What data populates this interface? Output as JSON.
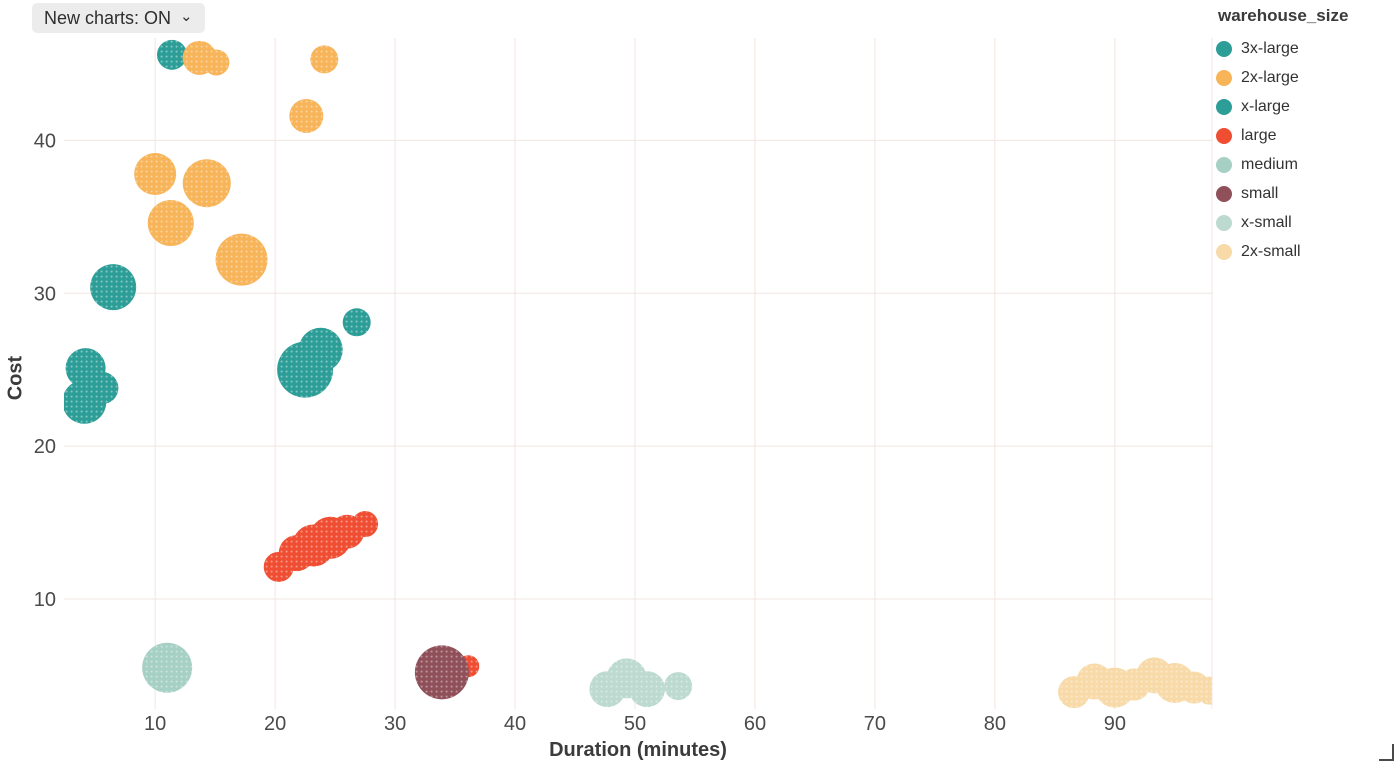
{
  "controls": {
    "new_charts_toggle": {
      "label": "New charts: ON",
      "chevron_down_icon": "⌄"
    }
  },
  "legend": {
    "title": "warehouse_size",
    "items": [
      {
        "label": "3x-large",
        "color": "#2D9E97"
      },
      {
        "label": "2x-large",
        "color": "#F7B459"
      },
      {
        "label": "x-large",
        "color": "#2D9E97"
      },
      {
        "label": "large",
        "color": "#F04E33"
      },
      {
        "label": "medium",
        "color": "#A6D0C4"
      },
      {
        "label": "small",
        "color": "#8F505A"
      },
      {
        "label": "x-small",
        "color": "#BCDACF"
      },
      {
        "label": "2x-small",
        "color": "#F8DAA9"
      }
    ]
  },
  "chart_data": {
    "type": "scatter",
    "title": "",
    "xlabel": "Duration (minutes)",
    "ylabel": "Cost",
    "x_ticks": [
      10,
      20,
      30,
      40,
      50,
      60,
      70,
      80,
      90
    ],
    "y_ticks": [
      10,
      20,
      30,
      40
    ],
    "xlim": [
      2.4,
      98.1
    ],
    "ylim": [
      2.8,
      46.7
    ],
    "grid": true,
    "legend_position": "right",
    "grid_color": "#f1e5e0",
    "series": [
      {
        "name": "3x-large",
        "color": "#2D9E97",
        "points": [
          {
            "x": 11.4,
            "y": 45.6,
            "r": 15
          },
          {
            "x": 6.5,
            "y": 30.4,
            "r": 23
          },
          {
            "x": 4.2,
            "y": 25.1,
            "r": 20
          },
          {
            "x": 4.1,
            "y": 22.9,
            "r": 22
          },
          {
            "x": 5.6,
            "y": 23.8,
            "r": 16
          }
        ]
      },
      {
        "name": "2x-large",
        "color": "#F7B459",
        "points": [
          {
            "x": 13.7,
            "y": 45.4,
            "r": 17
          },
          {
            "x": 15.1,
            "y": 45.1,
            "r": 13
          },
          {
            "x": 24.1,
            "y": 45.3,
            "r": 14
          },
          {
            "x": 22.6,
            "y": 41.6,
            "r": 17
          },
          {
            "x": 10.0,
            "y": 37.8,
            "r": 21
          },
          {
            "x": 14.3,
            "y": 37.2,
            "r": 24
          },
          {
            "x": 11.3,
            "y": 34.6,
            "r": 23
          },
          {
            "x": 17.2,
            "y": 32.2,
            "r": 26
          }
        ]
      },
      {
        "name": "x-large",
        "color": "#2D9E97",
        "points": [
          {
            "x": 26.8,
            "y": 28.1,
            "r": 14
          },
          {
            "x": 23.8,
            "y": 26.3,
            "r": 22
          },
          {
            "x": 22.5,
            "y": 25.0,
            "r": 28
          }
        ]
      },
      {
        "name": "large",
        "color": "#F04E33",
        "points": [
          {
            "x": 20.3,
            "y": 12.1,
            "r": 15
          },
          {
            "x": 21.8,
            "y": 13.0,
            "r": 18
          },
          {
            "x": 23.2,
            "y": 13.5,
            "r": 21
          },
          {
            "x": 24.6,
            "y": 14.0,
            "r": 21
          },
          {
            "x": 26.0,
            "y": 14.4,
            "r": 17
          },
          {
            "x": 27.5,
            "y": 14.9,
            "r": 13
          },
          {
            "x": 36.1,
            "y": 5.6,
            "r": 11
          }
        ]
      },
      {
        "name": "medium",
        "color": "#A6D0C4",
        "points": [
          {
            "x": 11.0,
            "y": 5.5,
            "r": 25
          }
        ]
      },
      {
        "name": "small",
        "color": "#8F505A",
        "points": [
          {
            "x": 33.9,
            "y": 5.2,
            "r": 27
          }
        ]
      },
      {
        "name": "x-small",
        "color": "#BCDACF",
        "points": [
          {
            "x": 47.7,
            "y": 4.1,
            "r": 18
          },
          {
            "x": 49.3,
            "y": 4.8,
            "r": 20
          },
          {
            "x": 51.0,
            "y": 4.1,
            "r": 18
          },
          {
            "x": 53.6,
            "y": 4.3,
            "r": 14
          }
        ]
      },
      {
        "name": "2x-small",
        "color": "#F8DAA9",
        "points": [
          {
            "x": 86.6,
            "y": 3.9,
            "r": 16
          },
          {
            "x": 88.3,
            "y": 4.6,
            "r": 18
          },
          {
            "x": 90.0,
            "y": 4.2,
            "r": 20
          },
          {
            "x": 91.6,
            "y": 4.4,
            "r": 16
          },
          {
            "x": 93.3,
            "y": 5.0,
            "r": 18
          },
          {
            "x": 95.0,
            "y": 4.5,
            "r": 20
          },
          {
            "x": 96.6,
            "y": 4.2,
            "r": 16
          },
          {
            "x": 97.9,
            "y": 4.0,
            "r": 14
          }
        ]
      }
    ]
  }
}
